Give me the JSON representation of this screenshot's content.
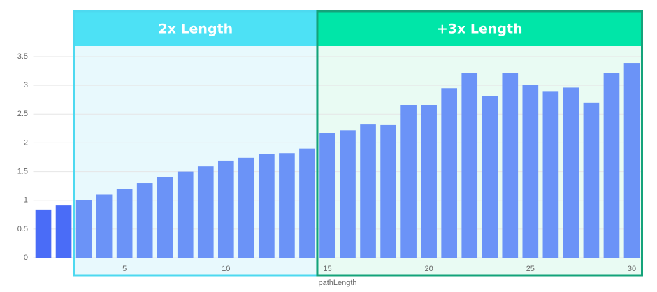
{
  "chart_data": {
    "type": "bar",
    "x": [
      1,
      2,
      3,
      4,
      5,
      6,
      7,
      8,
      9,
      10,
      11,
      12,
      13,
      14,
      15,
      16,
      17,
      18,
      19,
      20,
      21,
      22,
      23,
      24,
      25,
      26,
      27,
      28,
      29,
      30
    ],
    "series": [
      {
        "values": [
          0.84,
          0.91,
          1.0,
          1.1,
          1.2,
          1.3,
          1.4,
          1.5,
          1.59,
          1.69,
          1.74,
          1.81,
          1.82,
          1.9,
          2.17,
          2.22,
          2.32,
          2.31,
          2.65,
          2.65,
          2.95,
          3.21,
          2.81,
          3.22,
          3.01,
          2.9,
          2.96,
          2.7,
          3.22,
          3.39
        ],
        "colors": [
          "#4a6cf7",
          "#4a6cf7",
          "#6b93f7",
          "#6b93f7",
          "#6b93f7",
          "#6b93f7",
          "#6b93f7",
          "#6b93f7",
          "#6b93f7",
          "#6b93f7",
          "#6b93f7",
          "#6b93f7",
          "#6b93f7",
          "#6b93f7",
          "#6b93f7",
          "#6b93f7",
          "#6b93f7",
          "#6b93f7",
          "#6b93f7",
          "#6b93f7",
          "#6b93f7",
          "#6b93f7",
          "#6b93f7",
          "#6b93f7",
          "#6b93f7",
          "#6b93f7",
          "#6b93f7",
          "#6b93f7",
          "#6b93f7",
          "#6b93f7"
        ]
      }
    ],
    "x_label": "pathLength",
    "xlim": [
      0.5,
      30.5
    ],
    "xticks": [
      5,
      10,
      15,
      20,
      25,
      30
    ],
    "ylim": [
      0,
      3.5
    ],
    "yticks": [
      0,
      0.5,
      1,
      1.5,
      2,
      2.5,
      3,
      3.5
    ],
    "grid": true,
    "regions": [
      {
        "label": "2x Length",
        "x": [
          2.5,
          14.5
        ],
        "header_color": "#4de1f5",
        "border_color": "#4dd9f0",
        "fill_color": "#e8f9fd"
      },
      {
        "label": "+3x Length",
        "x": [
          14.5,
          30.5
        ],
        "header_color": "#00e6a8",
        "border_color": "#14a37a",
        "fill_color": "#e9fbf3"
      }
    ]
  }
}
